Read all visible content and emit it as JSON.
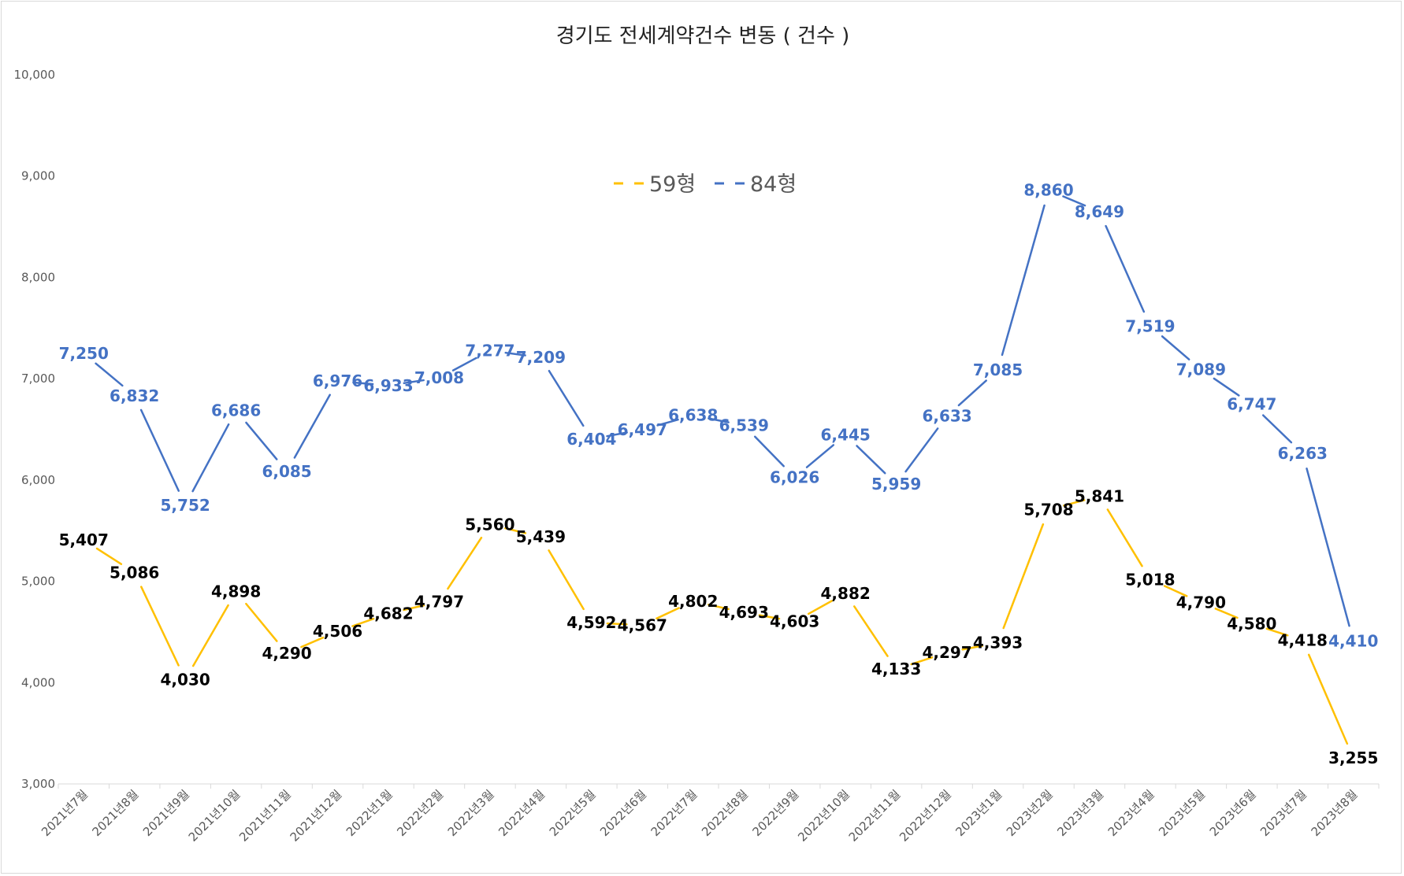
{
  "chart_data": {
    "type": "line",
    "title": "경기도 전세계약건수 변동 ( 건수 )",
    "xlabel": "",
    "ylabel": "",
    "ylim": [
      3000,
      10000
    ],
    "yticks": [
      "3,000",
      "4,000",
      "5,000",
      "6,000",
      "7,000",
      "8,000",
      "9,000",
      "10,000"
    ],
    "ytick_values": [
      3000,
      4000,
      5000,
      6000,
      7000,
      8000,
      9000,
      10000
    ],
    "grid": false,
    "legend_position": "top-center",
    "categories": [
      "2021년7월",
      "2021년8월",
      "2021년9월",
      "2021년10월",
      "2021년11월",
      "2021년12월",
      "2022년1월",
      "2022년2월",
      "2022년3월",
      "2022년4월",
      "2022년5월",
      "2022년6월",
      "2022년7월",
      "2022년8월",
      "2022년9월",
      "2022년10월",
      "2022년11월",
      "2022년12월",
      "2023년1월",
      "2023년2월",
      "2023년3월",
      "2023년4월",
      "2023년5월",
      "2023년6월",
      "2023년7월",
      "2023년8월"
    ],
    "series": [
      {
        "name": "59형",
        "color": "#FFC000",
        "label_color": "#000000",
        "values": [
          5407,
          5086,
          4030,
          4898,
          4290,
          4506,
          4682,
          4797,
          5560,
          5439,
          4592,
          4567,
          4802,
          4693,
          4603,
          4882,
          4133,
          4297,
          4393,
          5708,
          5841,
          5018,
          4790,
          4580,
          4418,
          3255
        ],
        "labels": [
          "5,407",
          "5,086",
          "4,030",
          "4,898",
          "4,290",
          "4,506",
          "4,682",
          "4,797",
          "5,560",
          "5,439",
          "4,592",
          "4,567",
          "4,802",
          "4,693",
          "4,603",
          "4,882",
          "4,133",
          "4,297",
          "4,393",
          "5,708",
          "5,841",
          "5,018",
          "4,790",
          "4,580",
          "4,418",
          "3,255"
        ]
      },
      {
        "name": "84형",
        "color": "#4472C4",
        "label_color": "#4472C4",
        "values": [
          7250,
          6832,
          5752,
          6686,
          6085,
          6976,
          6933,
          7008,
          7277,
          7209,
          6404,
          6497,
          6638,
          6539,
          6026,
          6445,
          5959,
          6633,
          7085,
          8860,
          8649,
          7519,
          7089,
          6747,
          6263,
          4410
        ],
        "labels": [
          "7,250",
          "6,832",
          "5,752",
          "6,686",
          "6,085",
          "6,976",
          "6,933",
          "7,008",
          "7,277",
          "7,209",
          "6,404",
          "6,497",
          "6,638",
          "6,539",
          "6,026",
          "6,445",
          "5,959",
          "6,633",
          "7,085",
          "8,860",
          "8,649",
          "7,519",
          "7,089",
          "6,747",
          "6,263",
          "4,410"
        ]
      }
    ]
  }
}
